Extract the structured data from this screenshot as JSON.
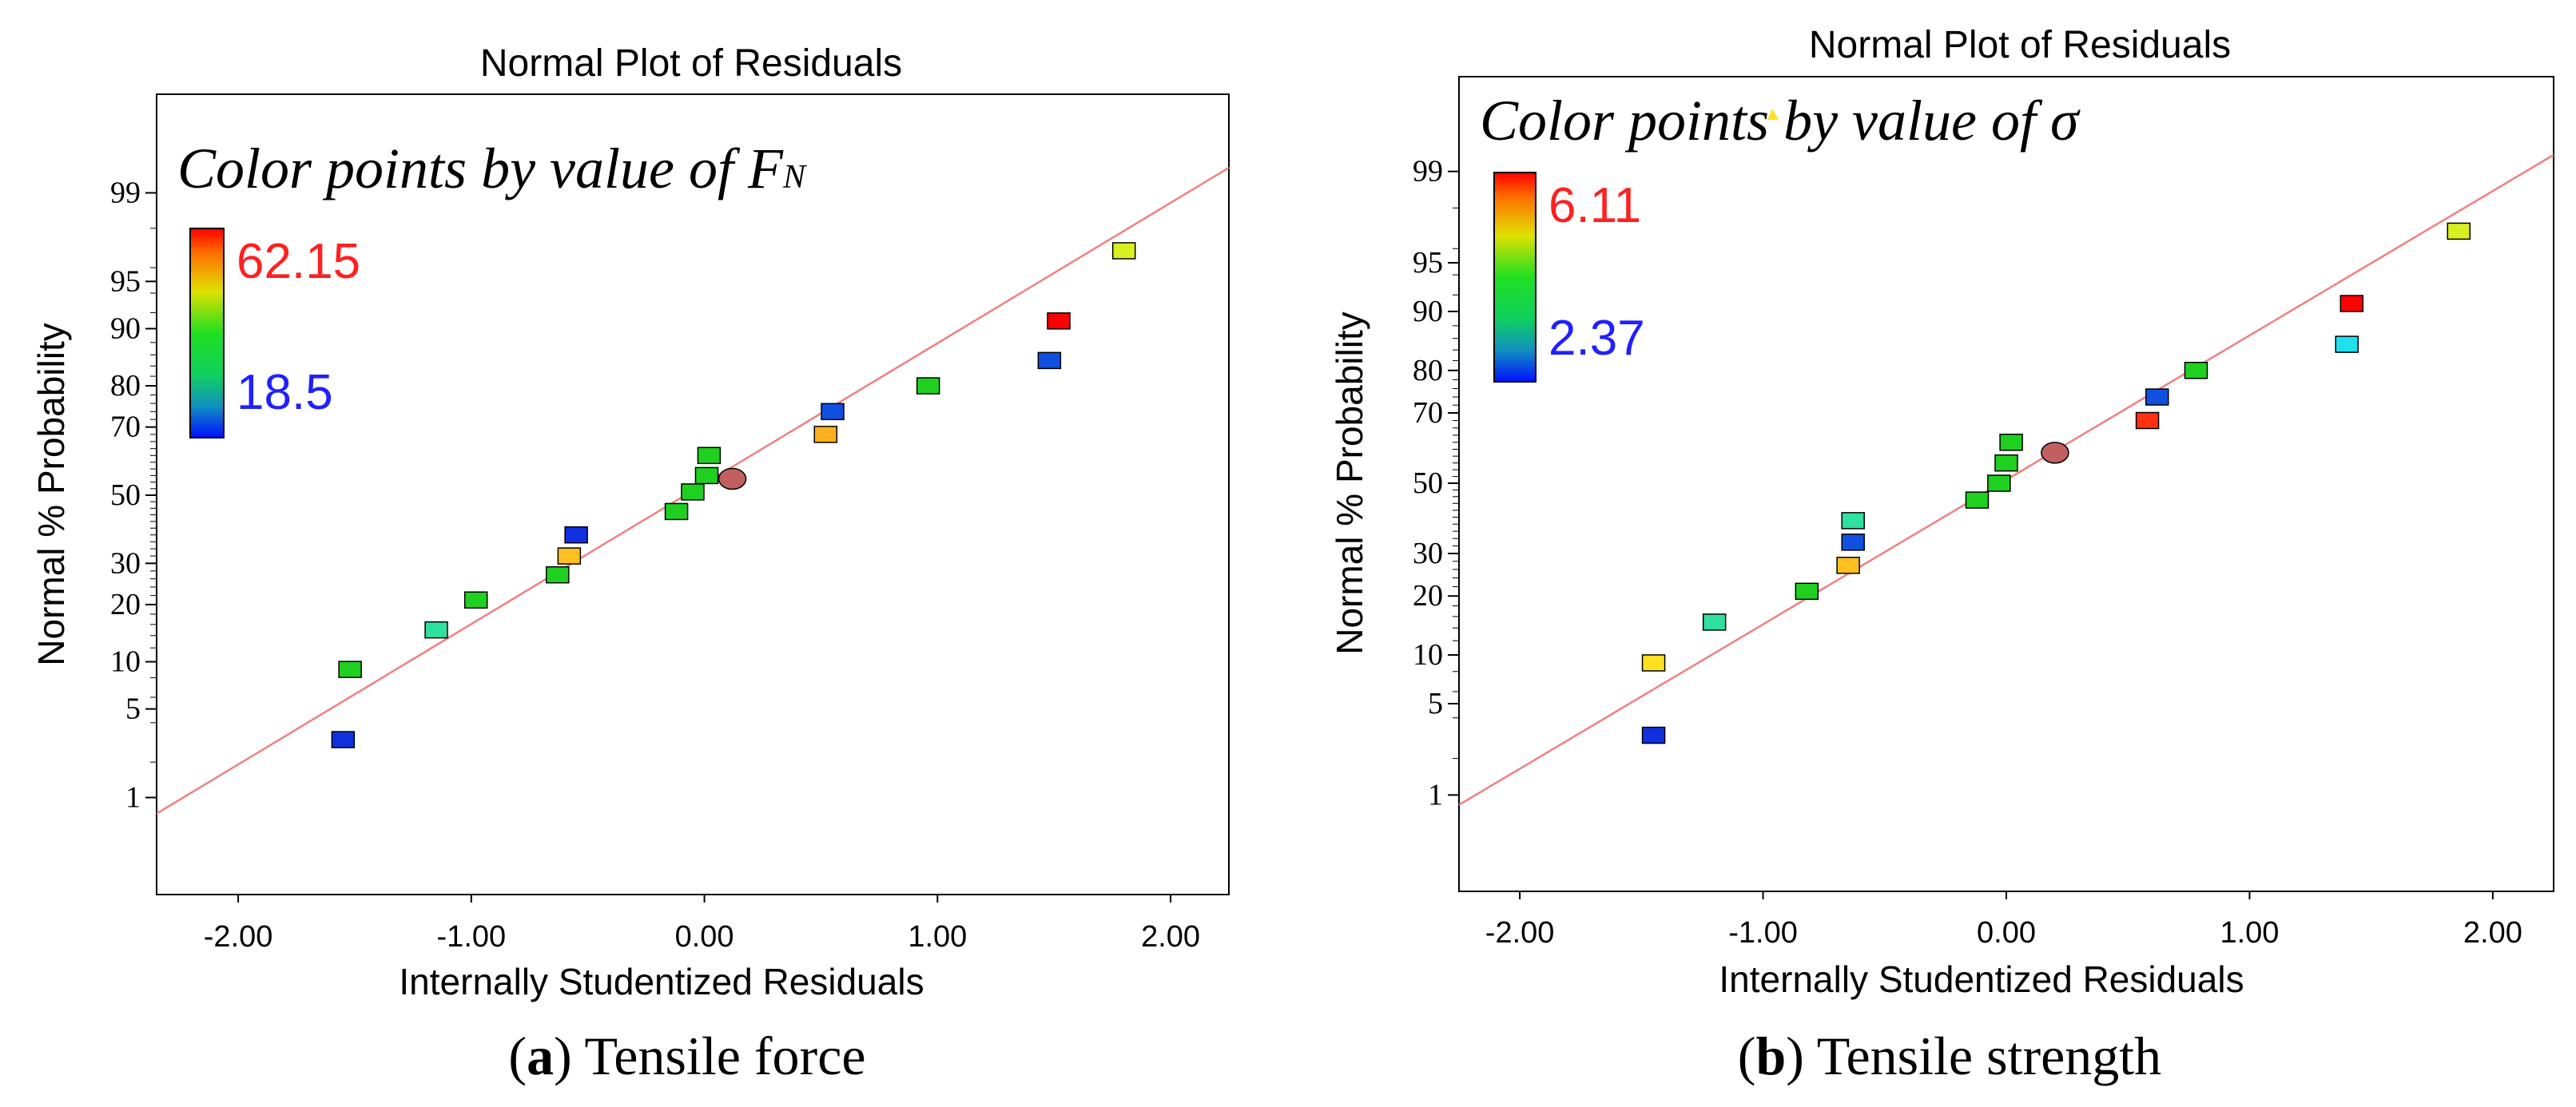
{
  "colors": {
    "fit_line": "#f08080",
    "highlight_point": "#c06060",
    "frame": "#000000",
    "max_label": "#ff2020",
    "min_label": "#2020ff"
  },
  "chart_data": [
    {
      "type": "scatter",
      "panel": "a",
      "title": "Normal Plot of Residuals",
      "xlabel": "Internally Studentized Residuals",
      "ylabel": "Normal % Probability",
      "xlim": [
        -2.35,
        2.25
      ],
      "x_ticks": [
        -2.0,
        -1.0,
        0.0,
        1.0,
        2.0
      ],
      "x_tick_labels": [
        "-2.00",
        "-1.00",
        "0.00",
        "1.00",
        "2.00"
      ],
      "y_ticks": [
        1,
        5,
        10,
        20,
        30,
        50,
        70,
        80,
        90,
        95,
        99
      ],
      "y_tick_labels": [
        "1",
        "5",
        "10",
        "20",
        "30",
        "50",
        "70",
        "80",
        "90",
        "95",
        "99"
      ],
      "color_by": {
        "title_prefix": "Color points by value of ",
        "variable": "F",
        "variable_subscript": "N",
        "max_label": "62.15",
        "min_label": "18.5"
      },
      "fit_line": {
        "x": [
          -2.35,
          2.25
        ],
        "z": [
          -2.45,
          2.52
        ]
      },
      "points": [
        {
          "x": -1.55,
          "p": 3.0,
          "color": "#1030e0"
        },
        {
          "x": -1.52,
          "p": 9.0,
          "color": "#20d020"
        },
        {
          "x": -1.15,
          "p": 15.0,
          "color": "#30e0a0"
        },
        {
          "x": -0.98,
          "p": 21.0,
          "color": "#20d020"
        },
        {
          "x": -0.63,
          "p": 27.0,
          "color": "#20d020"
        },
        {
          "x": -0.58,
          "p": 32.0,
          "color": "#ffc020"
        },
        {
          "x": -0.55,
          "p": 38.0,
          "color": "#1030e0"
        },
        {
          "x": -0.12,
          "p": 45.0,
          "color": "#20d020"
        },
        {
          "x": -0.05,
          "p": 51.0,
          "color": "#20d020"
        },
        {
          "x": 0.01,
          "p": 56.0,
          "color": "#20d020"
        },
        {
          "x": 0.02,
          "p": 62.0,
          "color": "#20d020"
        },
        {
          "x": 0.12,
          "p": 55.0,
          "color": "#c06060",
          "shape": "ellipse"
        },
        {
          "x": 0.52,
          "p": 68.0,
          "color": "#ffb020"
        },
        {
          "x": 0.55,
          "p": 74.0,
          "color": "#1050e0"
        },
        {
          "x": 0.96,
          "p": 80.0,
          "color": "#20d020"
        },
        {
          "x": 1.48,
          "p": 85.0,
          "color": "#1050e0"
        },
        {
          "x": 1.52,
          "p": 91.0,
          "color": "#ff0000"
        },
        {
          "x": 1.8,
          "p": 97.0,
          "color": "#d8f020"
        }
      ]
    },
    {
      "type": "scatter",
      "panel": "b",
      "title": "Normal Plot of Residuals",
      "xlabel": "Internally Studentized Residuals",
      "ylabel": "Normal % Probability",
      "xlim": [
        -2.25,
        2.25
      ],
      "x_ticks": [
        -2.0,
        -1.0,
        0.0,
        1.0,
        2.0
      ],
      "x_tick_labels": [
        "-2.00",
        "-1.00",
        "0.00",
        "1.00",
        "2.00"
      ],
      "y_ticks": [
        1,
        5,
        10,
        20,
        30,
        50,
        70,
        80,
        90,
        95,
        99
      ],
      "y_tick_labels": [
        "1",
        "5",
        "10",
        "20",
        "30",
        "50",
        "70",
        "80",
        "90",
        "95",
        "99"
      ],
      "color_by": {
        "title_prefix": "Color points by value of ",
        "variable": "σ",
        "variable_subscript": "",
        "max_label": "6.11",
        "min_label": "2.37"
      },
      "fit_line": {
        "x": [
          -2.25,
          2.25
        ],
        "z": [
          -2.4,
          2.45
        ]
      },
      "points": [
        {
          "x": -1.45,
          "p": 3.0,
          "color": "#1030e0"
        },
        {
          "x": -1.45,
          "p": 9.0,
          "color": "#ffe020"
        },
        {
          "x": -1.2,
          "p": 15.0,
          "color": "#30e0a0"
        },
        {
          "x": -0.82,
          "p": 21.0,
          "color": "#20d020"
        },
        {
          "x": -0.65,
          "p": 27.0,
          "color": "#ffc020"
        },
        {
          "x": -0.63,
          "p": 33.0,
          "color": "#1050e0"
        },
        {
          "x": -0.63,
          "p": 39.0,
          "color": "#30e0a0"
        },
        {
          "x": -0.12,
          "p": 45.0,
          "color": "#20d020"
        },
        {
          "x": -0.03,
          "p": 50.0,
          "color": "#20d020"
        },
        {
          "x": 0.0,
          "p": 56.0,
          "color": "#20d020"
        },
        {
          "x": 0.02,
          "p": 62.0,
          "color": "#20d020"
        },
        {
          "x": 0.2,
          "p": 59.0,
          "color": "#c06060",
          "shape": "ellipse"
        },
        {
          "x": 0.58,
          "p": 68.0,
          "color": "#ff3010"
        },
        {
          "x": 0.62,
          "p": 74.0,
          "color": "#1050e0"
        },
        {
          "x": 0.78,
          "p": 80.0,
          "color": "#20d020"
        },
        {
          "x": 1.4,
          "p": 85.0,
          "color": "#20e0f0"
        },
        {
          "x": 1.42,
          "p": 91.0,
          "color": "#ff0000"
        },
        {
          "x": 1.86,
          "p": 97.0,
          "color": "#d8f020"
        }
      ]
    }
  ],
  "captions": [
    {
      "letter": "a",
      "open": "(",
      "close": ")",
      "text": " Tensile force"
    },
    {
      "letter": "b",
      "open": "(",
      "close": ")",
      "text": " Tensile strength"
    }
  ]
}
